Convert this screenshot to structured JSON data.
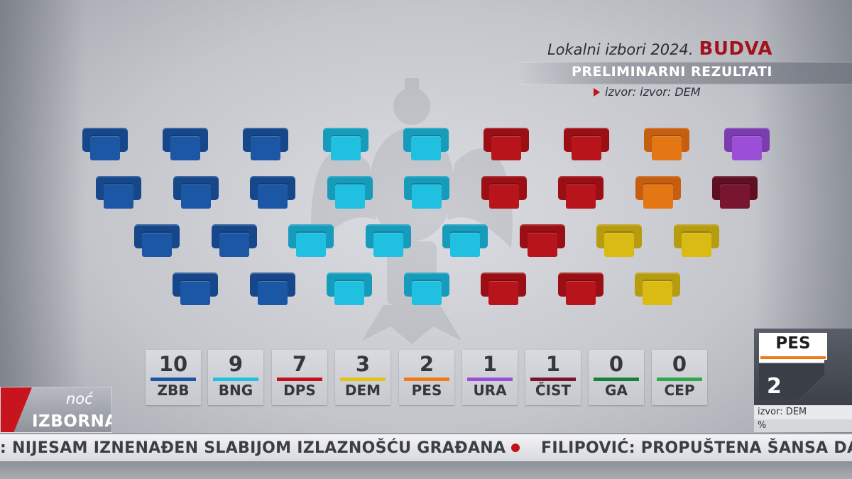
{
  "header": {
    "subtitle": "Lokalni izbori 2024.",
    "city": "BUDVA",
    "title": "PRELIMINARNI REZULTATI",
    "source": "izvor: izvor: DEM"
  },
  "parties": [
    {
      "abbr": "ZBB",
      "seats": "10",
      "color": "#1c57a5"
    },
    {
      "abbr": "BNG",
      "seats": "9",
      "color": "#1fc0e0"
    },
    {
      "abbr": "DPS",
      "seats": "7",
      "color": "#c0121a"
    },
    {
      "abbr": "DEM",
      "seats": "3",
      "color": "#e2c416"
    },
    {
      "abbr": "PES",
      "seats": "2",
      "color": "#f07b16"
    },
    {
      "abbr": "URA",
      "seats": "1",
      "color": "#9b4fd6"
    },
    {
      "abbr": "ČIST",
      "seats": "1",
      "color": "#7a1530"
    },
    {
      "abbr": "GA",
      "seats": "0",
      "color": "#17803a"
    },
    {
      "abbr": "CEP",
      "seats": "0",
      "color": "#2fa84a"
    }
  ],
  "seat_colors": {
    "ZBB": {
      "back": "#16478a",
      "cushion": "#1c57a5"
    },
    "BNG": {
      "back": "#179bbb",
      "cushion": "#1fc0e0"
    },
    "DPS": {
      "back": "#9a0e14",
      "cushion": "#b8141b"
    },
    "DEM": {
      "back": "#b89c10",
      "cushion": "#d9bb14"
    },
    "PES": {
      "back": "#c55e0f",
      "cushion": "#e47613"
    },
    "URA": {
      "back": "#7b3cb0",
      "cushion": "#9b4fd6"
    },
    "ČIST": {
      "back": "#5e0f24",
      "cushion": "#7a1530"
    }
  },
  "seat_rows": [
    [
      "ZBB",
      "ZBB",
      "ZBB",
      "BNG",
      "BNG",
      "DPS",
      "DPS",
      "PES",
      "URA"
    ],
    [
      "ZBB",
      "ZBB",
      "ZBB",
      "BNG",
      "BNG",
      "DPS",
      "DPS",
      "PES",
      "ČIST"
    ],
    [
      "ZBB",
      "ZBB",
      "BNG",
      "BNG",
      "BNG",
      "DPS",
      "DEM",
      "DEM"
    ],
    [
      "ZBB",
      "ZBB",
      "BNG",
      "BNG",
      "DPS",
      "DPS",
      "DEM"
    ]
  ],
  "highlight": {
    "party": "PES",
    "seats": "2",
    "source": "izvor: DEM",
    "percent": "%",
    "accent": "#f07b16"
  },
  "logo": {
    "small": "noć",
    "main": "IZBORNA"
  },
  "ticker": {
    "item1": ": NIJESAM IZNENAĐEN SLABIJOM IZLAZNOŠĆU GRAĐANA",
    "item2": "FILIPOVIĆ: PROPUŠTENA ŠANSA DA SE"
  }
}
